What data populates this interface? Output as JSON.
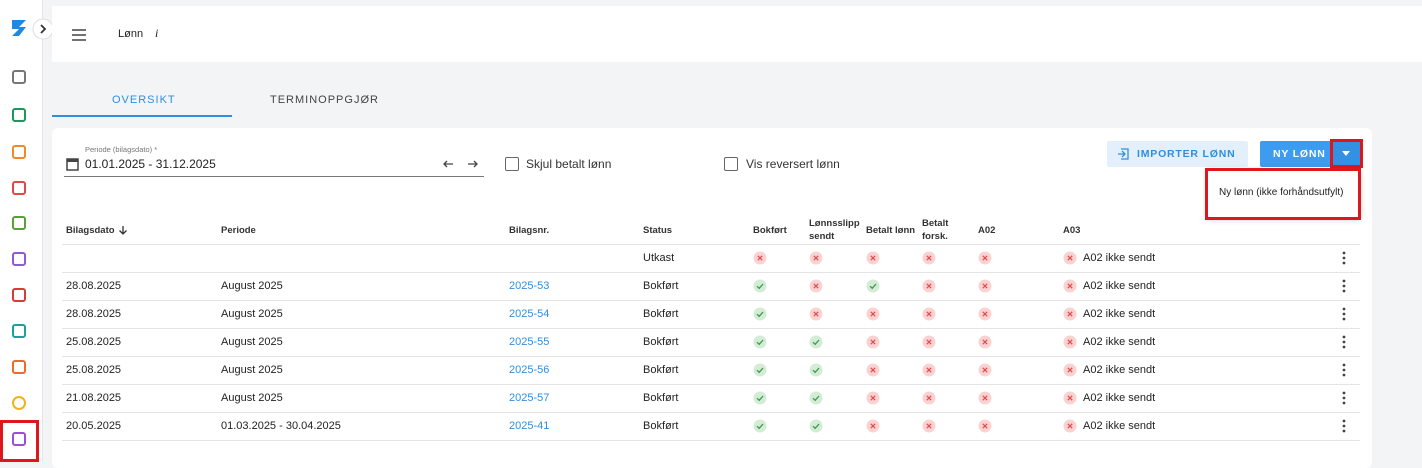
{
  "header": {
    "title": "Lønn",
    "info": "i"
  },
  "tabs": [
    "OVERSIKT",
    "TERMINOPPGJØR"
  ],
  "filters": {
    "period_label": "Periode (bilagsdato) *",
    "period_value": "01.01.2025 - 31.12.2025",
    "hide_paid": "Skjul betalt lønn",
    "show_reversed": "Vis reversert lønn"
  },
  "buttons": {
    "import": "IMPORTER LØNN",
    "new": "NY LØNN",
    "dropdown_item": "Ny lønn (ikke forhåndsutfylt)"
  },
  "table": {
    "columns": [
      "Bilagsdato",
      "Periode",
      "Bilagsnr.",
      "Status",
      "Bokført",
      "Lønnsslipp sendt",
      "Betalt lønn",
      "Betalt forsk.",
      "A02",
      "A03"
    ],
    "rows": [
      {
        "status": "Utkast",
        "booked": false,
        "payslip_sent": false,
        "paid": false,
        "advance_paid": false,
        "a02": false,
        "a03": false,
        "a03_text": "A02 ikke sendt"
      },
      {
        "date": "28.08.2025",
        "period": "August 2025",
        "number": "2025-53",
        "status": "Bokført",
        "booked": true,
        "payslip_sent": false,
        "paid": true,
        "advance_paid": false,
        "a02": false,
        "a03": false,
        "a03_text": "A02 ikke sendt"
      },
      {
        "date": "28.08.2025",
        "period": "August 2025",
        "number": "2025-54",
        "status": "Bokført",
        "booked": true,
        "payslip_sent": false,
        "paid": false,
        "advance_paid": false,
        "a02": false,
        "a03": false,
        "a03_text": "A02 ikke sendt"
      },
      {
        "date": "25.08.2025",
        "period": "August 2025",
        "number": "2025-55",
        "status": "Bokført",
        "booked": true,
        "payslip_sent": true,
        "paid": false,
        "advance_paid": false,
        "a02": false,
        "a03": false,
        "a03_text": "A02 ikke sendt"
      },
      {
        "date": "25.08.2025",
        "period": "August 2025",
        "number": "2025-56",
        "status": "Bokført",
        "booked": true,
        "payslip_sent": true,
        "paid": false,
        "advance_paid": false,
        "a02": false,
        "a03": false,
        "a03_text": "A02 ikke sendt"
      },
      {
        "date": "21.08.2025",
        "period": "August 2025",
        "number": "2025-57",
        "status": "Bokført",
        "booked": true,
        "payslip_sent": true,
        "paid": false,
        "advance_paid": false,
        "a02": false,
        "a03": false,
        "a03_text": "A02 ikke sendt"
      },
      {
        "date": "20.05.2025",
        "period": "01.03.2025 - 30.04.2025",
        "number": "2025-41",
        "status": "Bokført",
        "booked": true,
        "payslip_sent": true,
        "paid": false,
        "advance_paid": false,
        "a02": false,
        "a03": false,
        "a03_text": "A02 ikke sendt"
      }
    ]
  }
}
